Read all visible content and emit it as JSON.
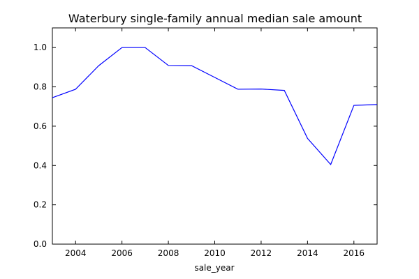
{
  "chart_data": {
    "type": "line",
    "title": "Waterbury single-family annual median sale amount",
    "xlabel": "sale_year",
    "ylabel": "",
    "xlim": [
      2003,
      2017
    ],
    "ylim": [
      0.0,
      1.1
    ],
    "xticks": [
      2004,
      2006,
      2008,
      2010,
      2012,
      2014,
      2016
    ],
    "yticks": [
      0.0,
      0.2,
      0.4,
      0.6,
      0.8,
      1.0
    ],
    "xtick_labels": [
      "2004",
      "2006",
      "2008",
      "2010",
      "2012",
      "2014",
      "2016"
    ],
    "ytick_labels": [
      "0.0",
      "0.2",
      "0.4",
      "0.6",
      "0.8",
      "1.0"
    ],
    "grid": false,
    "series": [
      {
        "color": "#0000ff",
        "x": [
          2003,
          2004,
          2005,
          2006,
          2007,
          2008,
          2009,
          2010,
          2011,
          2012,
          2013,
          2014,
          2015,
          2016,
          2017
        ],
        "y": [
          0.745,
          0.788,
          0.908,
          1.0,
          1.0,
          0.909,
          0.908,
          0.848,
          0.788,
          0.789,
          0.782,
          0.538,
          0.405,
          0.706,
          0.71
        ]
      }
    ]
  }
}
